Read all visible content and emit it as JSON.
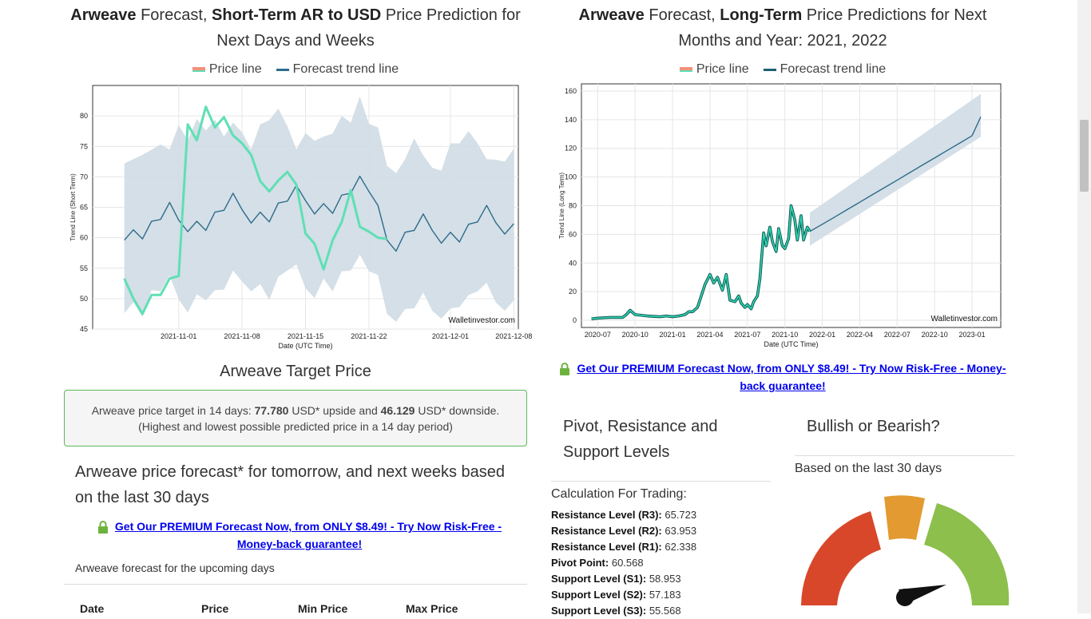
{
  "left": {
    "title_parts": {
      "a": "Arweave",
      "b": " Forecast, ",
      "c": "Short-Term AR to USD",
      "d": " Price Prediction for Next Days and Weeks"
    },
    "legend": {
      "price": "Price line",
      "forecast": "Forecast trend line"
    },
    "watermark": "Walletinvestor.com",
    "target_title": "Arweave Target Price",
    "target_text_1": "Arweave price target in 14 days: ",
    "target_up": "77.780",
    "target_text_2": " USD* upside and ",
    "target_down": "46.129",
    "target_text_3": " USD* downside.",
    "target_text_4": "(Highest and lowest possible predicted price in a 14 day period)",
    "forecast_heading": "Arweave price forecast* for tomorrow, and next weeks based on the last 30 days",
    "premium_line1": "Get Our PREMIUM Forecast Now, from ONLY $8.49! - Try Now Risk-Free -",
    "premium_line2": "Money-back guarantee!",
    "upcoming": "Arweave forecast for the upcoming days",
    "table_headers": [
      "Date",
      "Price",
      "Min Price",
      "Max Price"
    ]
  },
  "right": {
    "title_parts": {
      "a": "Arweave",
      "b": " Forecast, ",
      "c": "Long-Term",
      "d": " Price Predictions for Next Months and Year: 2021, 2022"
    },
    "legend": {
      "price": "Price line",
      "forecast": "Forecast trend line"
    },
    "watermark": "Walletinvestor.com",
    "premium_line1": "Get Our PREMIUM Forecast Now, from ONLY $8.49! - Try Now Risk-Free - Money-",
    "premium_line2": "back guarantee!",
    "pivot_title": "Pivot, Resistance and Support Levels",
    "calc_label": "Calculation For Trading:",
    "pivot_levels": [
      {
        "label": "Resistance Level (R3):",
        "value": "65.723"
      },
      {
        "label": "Resistance Level (R2):",
        "value": "63.953"
      },
      {
        "label": "Resistance Level (R1):",
        "value": "62.338"
      },
      {
        "label": "Pivot Point:",
        "value": "60.568"
      },
      {
        "label": "Support Level (S1):",
        "value": "58.953"
      },
      {
        "label": "Support Level (S2):",
        "value": "57.183"
      },
      {
        "label": "Support Level (S3):",
        "value": "55.568"
      }
    ],
    "bull_title": "Bullish or Bearish?",
    "bull_sub": "Based on the last 30 days"
  },
  "colors": {
    "price_line": "#5fdfb5",
    "forecast_line": "#2e6b8a",
    "band": "#cfdce4",
    "legend_price": "#f4907a",
    "gauge_red": "#d9472b",
    "gauge_orange": "#e39a30",
    "gauge_green": "#8cbf4b",
    "box_border": "#5cb85c",
    "link": "#0000ee"
  },
  "chart_data": [
    {
      "type": "line",
      "title": "",
      "xlabel": "Date (UTC Time)",
      "ylabel": "Trend Line (Short Term)",
      "ylim": [
        45,
        85
      ],
      "yticks": [
        45,
        50,
        55,
        60,
        65,
        70,
        75,
        80
      ],
      "xticks": [
        "2021-11-01",
        "2021-11-08",
        "2021-11-15",
        "2021-11-22",
        "2021-12-01",
        "2021-12-08"
      ],
      "series": [
        {
          "name": "Price line",
          "x": [
            -6,
            -5,
            -4,
            -3,
            -2,
            -1,
            0,
            1,
            2,
            3,
            4,
            5,
            6,
            7,
            8,
            9,
            10,
            11,
            12,
            13,
            14,
            15,
            16,
            17,
            18,
            19,
            20,
            21,
            22,
            23
          ],
          "values": [
            53.3,
            50,
            47.5,
            50.6,
            50.6,
            53.3,
            53.7,
            78.6,
            76,
            81.5,
            78.1,
            79.8,
            76.8,
            75.5,
            73.6,
            69.3,
            67.6,
            69.4,
            70.8,
            68.7,
            60.7,
            59,
            54.8,
            59.6,
            62.6,
            67.8,
            61.8,
            61,
            60,
            59.8
          ]
        },
        {
          "name": "Forecast trend line",
          "x": [
            -6,
            -5,
            -4,
            -3,
            -2,
            -1,
            0,
            1,
            2,
            3,
            4,
            5,
            6,
            7,
            8,
            9,
            10,
            11,
            12,
            13,
            14,
            15,
            16,
            17,
            18,
            19,
            20,
            21,
            22,
            23,
            24,
            25,
            26,
            27,
            28,
            29,
            30,
            31,
            32,
            33,
            34,
            35,
            36,
            37
          ],
          "values": [
            59.6,
            61.3,
            59.8,
            62.7,
            63,
            65.8,
            62.9,
            61,
            62.7,
            61.2,
            64.2,
            64.5,
            67.3,
            64.6,
            62.4,
            64.2,
            62.6,
            65.7,
            66,
            68.6,
            66.1,
            63.9,
            65.6,
            64,
            67,
            67.3,
            70.1,
            67.6,
            65.3,
            59.6,
            57.8,
            60.9,
            61.2,
            63.9,
            61.2,
            59.1,
            60.9,
            59.3,
            62.2,
            62.6,
            65.3,
            62.5,
            60.6,
            62.3
          ]
        },
        {
          "name": "band_upper",
          "x": [
            -6,
            -4,
            -2,
            -1,
            0,
            1,
            2,
            3,
            4,
            5,
            6,
            7,
            8,
            9,
            10,
            11,
            12,
            13,
            14,
            15,
            16,
            17,
            18,
            19,
            20,
            21,
            22,
            23,
            24,
            25,
            26,
            27,
            28,
            29,
            30,
            31,
            32,
            33,
            34,
            35,
            36,
            37
          ],
          "values": [
            72.2,
            73.6,
            75.3,
            74.5,
            78.5,
            76,
            79.5,
            77.6,
            79.4,
            76.6,
            78.9,
            77.3,
            74.5,
            78.6,
            79.3,
            81.2,
            78.3,
            74.5,
            77.2,
            75.9,
            76.6,
            77.1,
            80,
            78.9,
            83.2,
            78.7,
            78.1,
            71.8,
            70.6,
            72.9,
            76.3,
            73.5,
            71.5,
            71,
            75.5,
            75.5,
            77.5,
            75.5,
            72.9,
            72.8,
            72.5,
            74.6
          ]
        },
        {
          "name": "band_lower",
          "x": [
            -6,
            -5,
            -4,
            -3,
            -2,
            -1,
            0,
            1,
            2,
            3,
            4,
            5,
            6,
            7,
            8,
            9,
            10,
            11,
            12,
            13,
            14,
            15,
            16,
            17,
            18,
            19,
            20,
            21,
            22,
            23,
            24,
            25,
            26,
            27,
            28,
            29,
            30,
            31,
            32,
            33,
            34,
            35,
            36,
            37
          ],
          "values": [
            47.6,
            49.4,
            47,
            51.4,
            51.2,
            53.8,
            49.9,
            47.7,
            50.7,
            49.7,
            51.4,
            51.5,
            54.6,
            52.8,
            51.2,
            52.4,
            49.8,
            53.6,
            54.6,
            55.6,
            51.7,
            50.1,
            53.3,
            51.2,
            54.5,
            54.6,
            57.2,
            54.5,
            53.9,
            47.5,
            46.2,
            48.3,
            48.4,
            51,
            48,
            46.7,
            48.4,
            48.6,
            50.6,
            51.2,
            52.6,
            49.4,
            48,
            49.7
          ]
        }
      ]
    },
    {
      "type": "line",
      "title": "",
      "xlabel": "Date (UTC Time)",
      "ylabel": "Trend Line (Long Term)",
      "ylim": [
        -5,
        165
      ],
      "yticks": [
        0,
        20,
        40,
        60,
        80,
        100,
        120,
        140,
        160
      ],
      "xticks": [
        "2020-07",
        "2020-10",
        "2021-01",
        "2021-04",
        "2021-07",
        "2021-10",
        "2022-01",
        "2022-04",
        "2022-07",
        "2022-10",
        "2023-01"
      ],
      "series": [
        {
          "name": "Price line",
          "x": [
            -0.5,
            0,
            1,
            2,
            2.3,
            2.6,
            3,
            4,
            5,
            5.5,
            6,
            6.5,
            7,
            7.3,
            7.6,
            8,
            8.3,
            8.6,
            9,
            9.3,
            9.6,
            10,
            10.3,
            10.6,
            11,
            11.3,
            11.5,
            11.8,
            12,
            12.3,
            12.5,
            12.8,
            13,
            13.3,
            13.5,
            13.8,
            14,
            14.3,
            14.5,
            14.8,
            15,
            15.3,
            15.5,
            15.8,
            16,
            16.3,
            16.5,
            16.8,
            17
          ],
          "values": [
            1,
            1.5,
            2,
            2,
            4,
            7,
            4,
            3,
            2.5,
            3,
            2.5,
            3,
            4,
            6,
            6,
            9,
            17,
            25,
            32,
            26,
            30,
            21,
            32,
            14,
            13,
            17,
            12,
            9,
            11,
            8,
            13,
            17,
            29,
            61,
            52,
            65,
            55,
            48,
            64,
            52,
            50,
            57,
            80,
            70,
            56,
            73,
            56,
            65,
            62
          ]
        },
        {
          "name": "Forecast trend line",
          "x": [
            17,
            18,
            19,
            20,
            21,
            22,
            23,
            24,
            25,
            26,
            27,
            28,
            29,
            30,
            30.7
          ],
          "values": [
            62,
            67,
            72.1,
            77.3,
            82.4,
            87.6,
            92.7,
            97.8,
            103,
            108.2,
            113.3,
            118.5,
            123.6,
            128.8,
            142
          ]
        },
        {
          "name": "band_upper",
          "x": [
            17,
            30.7
          ],
          "values": [
            75,
            158
          ]
        },
        {
          "name": "band_lower",
          "x": [
            17,
            30.7
          ],
          "values": [
            52,
            128
          ]
        }
      ]
    }
  ]
}
